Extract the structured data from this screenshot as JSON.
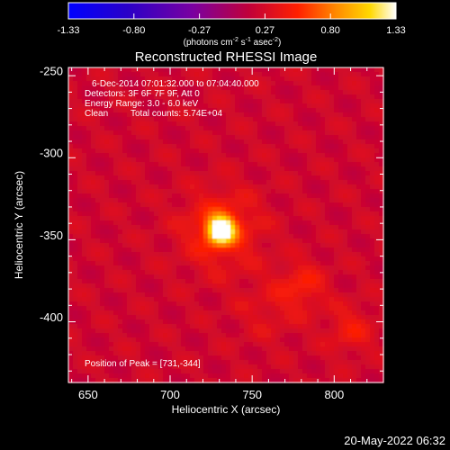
{
  "chart_data": {
    "type": "heatmap",
    "title": "Reconstructed RHESSI Image",
    "xlabel": "Heliocentric X (arcsec)",
    "ylabel": "Heliocentric Y (arcsec)",
    "xlim": [
      638,
      830
    ],
    "ylim": [
      -437,
      -245
    ],
    "xticks": [
      650,
      700,
      750,
      800
    ],
    "yticks": [
      -250,
      -300,
      -350,
      -400
    ],
    "colorbar": {
      "ticks": [
        "-1.33",
        "-0.80",
        "-0.27",
        "0.27",
        "0.80",
        "1.33"
      ],
      "range": [
        -1.33,
        1.33
      ],
      "unit_label": "(photons cm",
      "unit_sup1": "-2",
      "unit_mid": " s",
      "unit_sup2": "-1",
      "unit_end": " asec",
      "unit_sup3": "-2",
      "unit_close": ")"
    },
    "annotations": {
      "time_range": "6-Dec-2014 07:01:32.000 to 07:04:40.000",
      "detectors": "Detectors: 3F 6F 7F 9F, Att 0",
      "energy": "Energy Range: 3.0 - 6.0 keV",
      "clean_label": "Clean",
      "total_counts": "Total counts: 5.74E+04",
      "peak_position": "Position of Peak = [731,-344]"
    },
    "background_level": 0.22,
    "sources": [
      {
        "x": 731,
        "y": -344,
        "peak": 1.33,
        "sigma": 5.5
      },
      {
        "x": 731,
        "y": -344,
        "peak": 0.35,
        "sigma": 16
      },
      {
        "x": 781,
        "y": -378,
        "peak": 0.25,
        "sigma": 10
      },
      {
        "x": 810,
        "y": -405,
        "peak": 0.22,
        "sigma": 10
      },
      {
        "x": 760,
        "y": -392,
        "peak": 0.12,
        "sigma": 14
      }
    ],
    "colors": {
      "background": "#000000",
      "text": "#ffffff",
      "frame": "#ffffff"
    }
  },
  "footer": {
    "date": "20-May-2022 06:32"
  }
}
